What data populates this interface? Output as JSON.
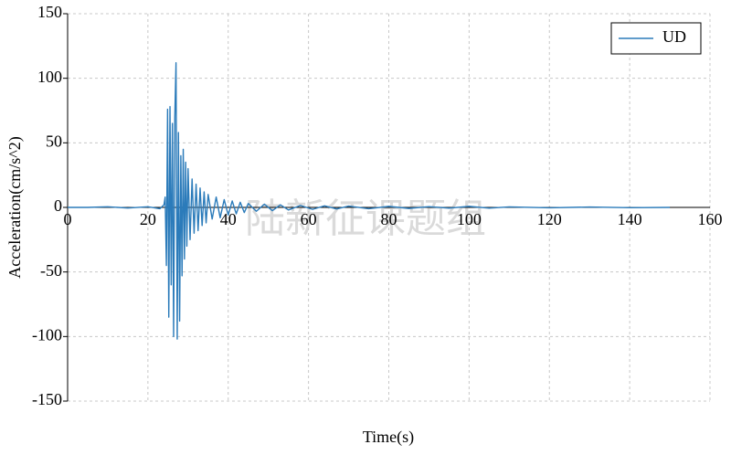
{
  "chart_data": {
    "type": "line",
    "x_label": "Time(s)",
    "y_label": "Acceleration(cm/s^2)",
    "watermark": "陆新征课题组",
    "x": [
      0,
      5,
      10,
      15,
      20,
      23,
      24,
      24.3,
      24.6,
      24.9,
      25.2,
      25.5,
      25.8,
      26.1,
      26.4,
      26.7,
      27.0,
      27.3,
      27.6,
      27.9,
      28.2,
      28.5,
      28.8,
      29.1,
      29.4,
      29.7,
      30,
      30.5,
      31,
      31.5,
      32,
      32.5,
      33,
      33.5,
      34,
      34.5,
      35,
      36,
      37,
      38,
      39,
      40,
      41,
      42,
      43,
      44,
      45,
      47,
      49,
      51,
      53,
      55,
      58,
      61,
      64,
      67,
      70,
      75,
      80,
      85,
      90,
      95,
      100,
      105,
      110,
      120,
      130,
      140,
      150
    ],
    "series": [
      {
        "name": "UD",
        "color": "#2b7bba",
        "values": [
          0,
          0,
          0.5,
          -0.5,
          0.5,
          -1,
          2,
          8,
          -45,
          76,
          -85,
          78,
          -60,
          65,
          -100,
          70,
          112,
          -102,
          58,
          -88,
          40,
          -53,
          45,
          -40,
          35,
          -30,
          30,
          -25,
          22,
          -20,
          18,
          -18,
          15,
          -14,
          12,
          -12,
          10,
          -9,
          8,
          -8,
          6,
          -6,
          5,
          -5,
          4,
          -4,
          3,
          -3,
          2.5,
          -2.5,
          2,
          -2,
          1.5,
          -1.5,
          1.2,
          -1.2,
          1,
          -1,
          0.8,
          -0.8,
          0.6,
          -0.6,
          0.8,
          -0.6,
          0.4,
          -0.3,
          0.3,
          -0.2,
          0
        ]
      }
    ],
    "xlim": [
      0,
      160
    ],
    "xticks": [
      0,
      20,
      40,
      60,
      80,
      100,
      120,
      140,
      160
    ],
    "ylim": [
      -150,
      150
    ],
    "yticks": [
      -150,
      -100,
      -50,
      0,
      50,
      100,
      150
    ],
    "grid": true,
    "legend": "upper right"
  }
}
